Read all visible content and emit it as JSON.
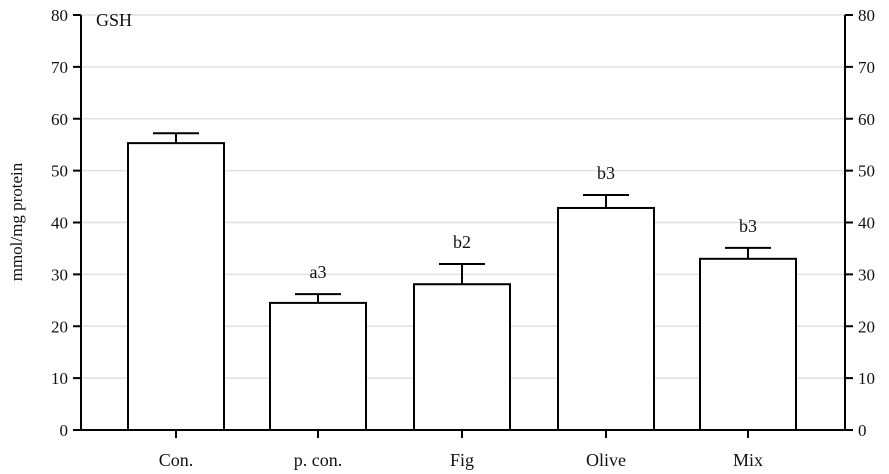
{
  "chart_data": {
    "type": "bar",
    "title": "GSH",
    "xlabel": "",
    "ylabel": "mmol/mg protein",
    "ylim": [
      0,
      80
    ],
    "yticks": [
      0,
      10,
      20,
      30,
      40,
      50,
      60,
      70,
      80
    ],
    "right_axis": true,
    "grid": true,
    "categories": [
      "Con.",
      "p. con.",
      "Fig",
      "Olive",
      "Mix"
    ],
    "values": [
      55.3,
      24.5,
      28.1,
      42.8,
      33.0
    ],
    "error": [
      1.9,
      1.7,
      3.9,
      2.5,
      2.1
    ],
    "annotations": [
      "",
      "a3",
      "b2",
      "b3",
      "b3"
    ],
    "colors": {
      "bar_fill": "#ffffff",
      "bar_stroke": "#000000",
      "grid": "#e0e0e0",
      "axis": "#000000"
    }
  }
}
